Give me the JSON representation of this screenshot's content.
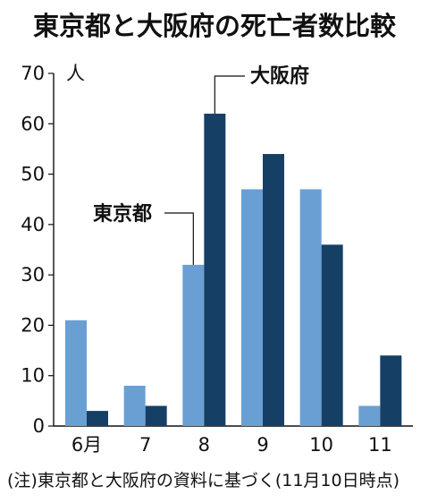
{
  "chart_data": {
    "type": "bar",
    "title": "東京都と大阪府の死亡者数比較",
    "ylabel": "人",
    "ylim": [
      0,
      70
    ],
    "yticks": [
      0,
      10,
      20,
      30,
      40,
      50,
      60,
      70
    ],
    "categories": [
      "6月",
      "7",
      "8",
      "9",
      "10",
      "11"
    ],
    "series": [
      {
        "name": "東京都",
        "values": [
          21,
          8,
          32,
          47,
          47,
          4
        ],
        "color": "#6a9fd4"
      },
      {
        "name": "大阪府",
        "values": [
          3,
          4,
          62,
          54,
          36,
          14
        ],
        "color": "#163f66"
      }
    ],
    "grid": false,
    "note": "(注)東京都と大阪府の資料に基づく(11月10日時点)"
  }
}
